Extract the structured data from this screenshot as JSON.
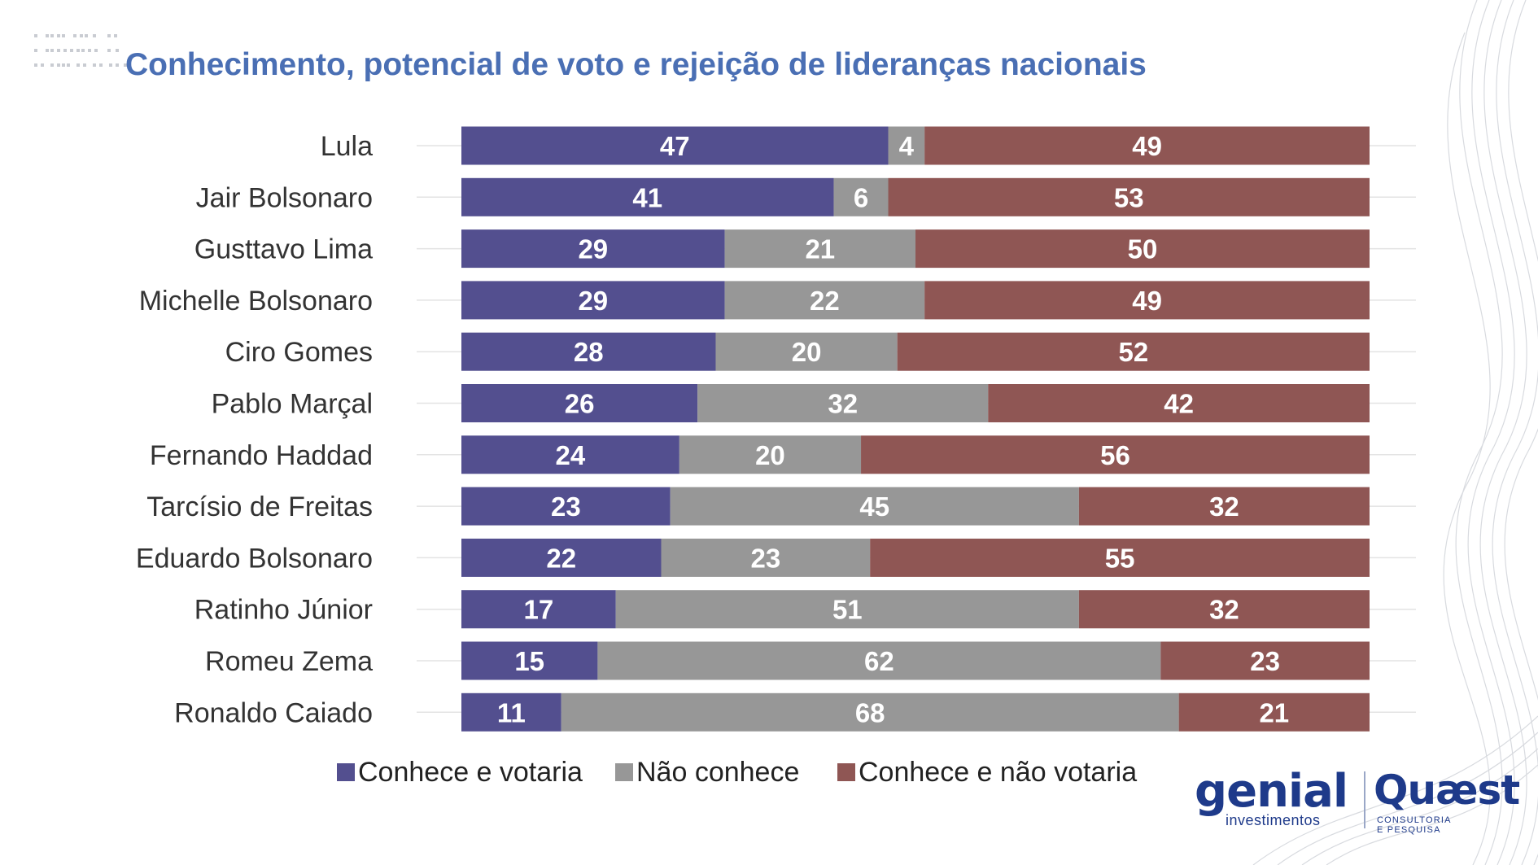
{
  "title": "Conhecimento, potencial de voto e rejeição de lideranças nacionais",
  "colors": {
    "votaria": "#534f8f",
    "nao_conhece": "#979797",
    "nao_votaria": "#8f5654",
    "title": "#4a6fb4",
    "logo": "#1e3a8a"
  },
  "chart_data": {
    "type": "bar",
    "orientation": "horizontal",
    "stacked": true,
    "categories": [
      "Lula",
      "Jair Bolsonaro",
      "Gusttavo Lima",
      "Michelle Bolsonaro",
      "Ciro Gomes",
      "Pablo Marçal",
      "Fernando Haddad",
      "Tarcísio de Freitas",
      "Eduardo Bolsonaro",
      "Ratinho Júnior",
      "Romeu Zema",
      "Ronaldo Caiado"
    ],
    "series": [
      {
        "name": "Conhece e votaria",
        "color": "#534f8f",
        "values": [
          47,
          41,
          29,
          29,
          28,
          26,
          24,
          23,
          22,
          17,
          15,
          11
        ]
      },
      {
        "name": "Não conhece",
        "color": "#979797",
        "values": [
          4,
          6,
          21,
          22,
          20,
          32,
          20,
          45,
          23,
          51,
          62,
          68
        ]
      },
      {
        "name": "Conhece e não votaria",
        "color": "#8f5654",
        "values": [
          49,
          53,
          50,
          49,
          52,
          42,
          56,
          32,
          55,
          32,
          23,
          21
        ]
      }
    ],
    "xlim": [
      0,
      100
    ],
    "data_labels": true,
    "gridlines": true,
    "legend_position": "bottom"
  },
  "legend": [
    {
      "label": "Conhece e votaria",
      "color": "#534f8f"
    },
    {
      "label": "Não conhece",
      "color": "#979797"
    },
    {
      "label": "Conhece e não votaria",
      "color": "#8f5654"
    }
  ],
  "logos": {
    "genial": "genial",
    "genial_sub": "investimentos",
    "quaest": "Quæst",
    "quaest_sub": "CONSULTORIA E PESQUISA"
  }
}
